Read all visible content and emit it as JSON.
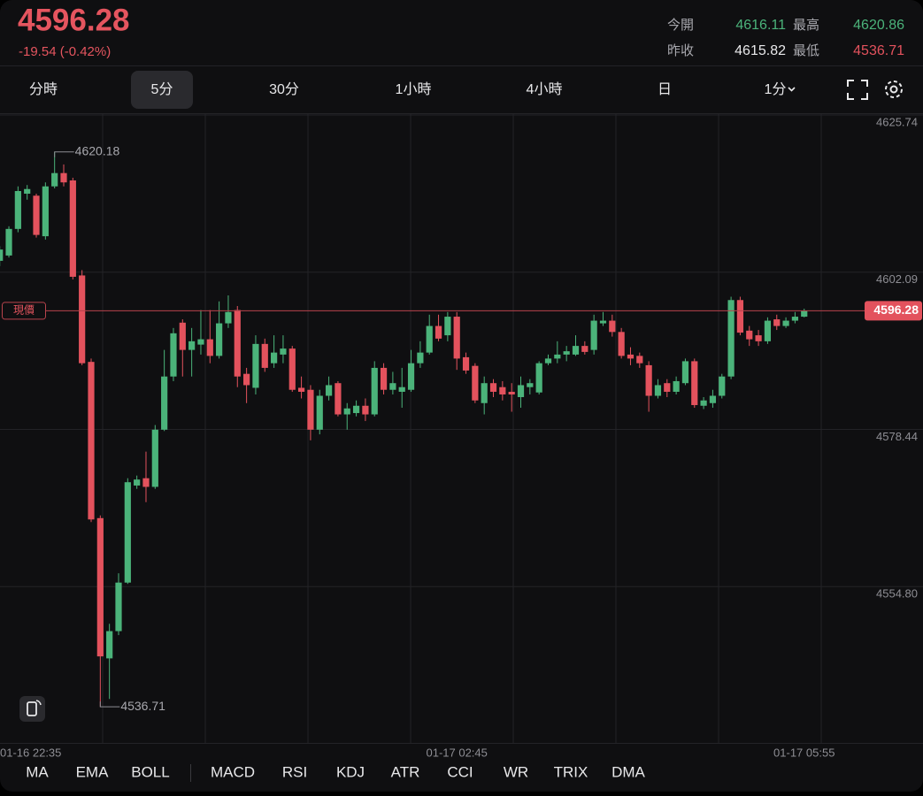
{
  "header": {
    "price": "4596.28",
    "change": "-19.54 (-0.42%)",
    "stats": [
      {
        "label": "今開",
        "value": "4616.11",
        "color": "#4bb37a"
      },
      {
        "label": "最高",
        "value": "4620.86",
        "color": "#4bb37a"
      },
      {
        "label": "昨收",
        "value": "4615.82",
        "color": "#e8e8ea"
      },
      {
        "label": "最低",
        "value": "4536.71",
        "color": "#e3525d"
      }
    ]
  },
  "tabs": {
    "items": [
      "分時",
      "5分",
      "30分",
      "1小時",
      "4小時",
      "日",
      "1分"
    ],
    "selected": 1
  },
  "indicators": [
    "MA",
    "EMA",
    "BOLL",
    "MACD",
    "RSI",
    "KDJ",
    "ATR",
    "CCI",
    "WR",
    "TRIX",
    "DMA"
  ],
  "chart_data": {
    "type": "candlestick",
    "up_color": "#4bb37a",
    "down_color": "#e3525d",
    "current_price": 4596.28,
    "current_price_label": "現價",
    "ylim": [
      4531.28,
      4625.74
    ],
    "yticks": [
      4625.74,
      4602.09,
      4578.44,
      {
        "value": 4554.8,
        "label": "4554.80"
      }
    ],
    "grid": true,
    "categories": [
      "01-16 22:35",
      null,
      null,
      null,
      null,
      null,
      null,
      null,
      null,
      null,
      null,
      null,
      null,
      null,
      null,
      null,
      null,
      null,
      null,
      null,
      null,
      null,
      null,
      null,
      null,
      null,
      null,
      null,
      null,
      null,
      null,
      null,
      null,
      null,
      null,
      null,
      null,
      null,
      null,
      null,
      null,
      null,
      null,
      null,
      null,
      null,
      null,
      null,
      null,
      null,
      "01-17 02:45",
      null,
      null,
      null,
      null,
      null,
      null,
      null,
      null,
      null,
      null,
      null,
      null,
      null,
      null,
      null,
      null,
      null,
      null,
      null,
      null,
      null,
      null,
      null,
      null,
      null,
      null,
      null,
      null,
      null,
      null,
      null,
      null,
      null,
      null,
      null,
      null,
      null,
      "01-17 05:55"
    ],
    "open": [
      4603.8,
      4604.6,
      4608.6,
      4613.9,
      4613.6,
      4607.5,
      4615.0,
      4617.0,
      4615.9,
      4601.6,
      4588.6,
      4565.1,
      4544.0,
      4548.1,
      4555.4,
      4570.0,
      4571.1,
      4569.8,
      4578.4,
      4586.4,
      4594.5,
      4590.4,
      4591.2,
      4592.0,
      4589.5,
      4594.4,
      4596.4,
      4586.8,
      4584.7,
      4591.3,
      4588.4,
      4589.7,
      4590.6,
      4584.7,
      4584.4,
      4578.4,
      4583.5,
      4585.4,
      4580.7,
      4580.9,
      4582.0,
      4580.7,
      4587.7,
      4584.4,
      4584.1,
      4584.4,
      4588.4,
      4590.0,
      4594.0,
      4592.6,
      4595.4,
      4589.3,
      4588.0,
      4582.4,
      4585.4,
      4584.8,
      4584.1,
      4583.3,
      4584.8,
      4584.0,
      4588.4,
      4589.1,
      4589.7,
      4589.7,
      4591.0,
      4590.4,
      4594.4,
      4594.8,
      4593.1,
      4589.7,
      4589.5,
      4588.1,
      4583.5,
      4585.4,
      4584.1,
      4585.4,
      4588.7,
      4582.0,
      4582.4,
      4583.5,
      4586.4,
      4597.9,
      4593.3,
      4592.6,
      4591.7,
      4595.0,
      4594.0,
      4594.8,
      4595.4
    ],
    "close": [
      4605.5,
      4608.6,
      4614.3,
      4614.6,
      4607.7,
      4615.0,
      4617.0,
      4615.6,
      4601.4,
      4588.4,
      4564.9,
      4544.3,
      4548.1,
      4555.4,
      4570.5,
      4570.9,
      4569.8,
      4578.4,
      4586.4,
      4592.9,
      4590.4,
      4591.7,
      4592.0,
      4589.5,
      4594.4,
      4596.1,
      4586.4,
      4585.1,
      4591.3,
      4587.7,
      4590.0,
      4590.6,
      4584.4,
      4584.1,
      4578.4,
      4583.5,
      4585.1,
      4580.7,
      4581.6,
      4582.0,
      4580.7,
      4587.7,
      4584.4,
      4585.4,
      4584.8,
      4588.4,
      4590.0,
      4594.0,
      4592.1,
      4595.4,
      4589.1,
      4587.3,
      4582.8,
      4585.4,
      4584.1,
      4583.7,
      4583.7,
      4585.1,
      4585.4,
      4588.4,
      4589.1,
      4589.7,
      4590.2,
      4591.0,
      4590.1,
      4594.8,
      4594.8,
      4593.1,
      4589.5,
      4589.1,
      4588.4,
      4583.5,
      4585.1,
      4584.1,
      4585.7,
      4588.7,
      4582.1,
      4582.8,
      4583.5,
      4586.4,
      4597.9,
      4593.0,
      4592.0,
      4591.7,
      4594.8,
      4594.0,
      4594.8,
      4595.4,
      4596.28
    ],
    "high": [
      4606.0,
      4609.0,
      4615.0,
      4615.2,
      4613.9,
      4615.6,
      4620.18,
      4618.3,
      4616.3,
      4602.4,
      4589.1,
      4565.5,
      4549.2,
      4556.8,
      4571.1,
      4571.5,
      4575.1,
      4579.1,
      4590.4,
      4593.7,
      4595.0,
      4593.7,
      4596.4,
      4596.4,
      4597.7,
      4598.6,
      4597.0,
      4587.7,
      4592.6,
      4592.1,
      4592.6,
      4592.6,
      4591.0,
      4586.4,
      4585.1,
      4584.4,
      4586.4,
      4585.7,
      4582.4,
      4582.8,
      4583.1,
      4588.7,
      4588.4,
      4587.1,
      4587.7,
      4590.4,
      4591.7,
      4595.7,
      4595.7,
      4596.1,
      4596.1,
      4590.0,
      4588.4,
      4586.4,
      4586.0,
      4585.7,
      4585.4,
      4586.4,
      4586.0,
      4588.7,
      4589.7,
      4591.7,
      4591.0,
      4592.6,
      4591.7,
      4595.7,
      4596.1,
      4595.7,
      4593.7,
      4590.8,
      4590.0,
      4588.7,
      4586.0,
      4586.0,
      4586.4,
      4589.1,
      4589.1,
      4583.3,
      4584.4,
      4586.8,
      4598.4,
      4598.4,
      4594.0,
      4593.4,
      4595.3,
      4595.7,
      4595.3,
      4596.1,
      4596.6
    ],
    "low": [
      4603.0,
      4604.3,
      4608.1,
      4613.0,
      4607.3,
      4607.0,
      4614.7,
      4615.0,
      4601.0,
      4588.1,
      4564.5,
      4536.71,
      4537.9,
      4547.5,
      4555.2,
      4569.5,
      4567.5,
      4569.5,
      4578.2,
      4585.7,
      4586.4,
      4586.4,
      4589.7,
      4588.4,
      4589.1,
      4593.7,
      4584.8,
      4582.4,
      4583.7,
      4587.1,
      4587.7,
      4588.4,
      4584.1,
      4583.1,
      4576.8,
      4577.7,
      4582.8,
      4580.4,
      4578.4,
      4580.4,
      4579.7,
      4580.4,
      4583.7,
      4583.7,
      4581.7,
      4584.1,
      4587.7,
      4589.7,
      4591.7,
      4591.7,
      4587.4,
      4586.8,
      4582.4,
      4580.7,
      4583.3,
      4582.8,
      4581.1,
      4581.7,
      4583.7,
      4583.7,
      4588.1,
      4588.4,
      4588.7,
      4589.5,
      4589.7,
      4589.7,
      4594.0,
      4592.4,
      4589.1,
      4588.1,
      4587.7,
      4581.1,
      4583.1,
      4583.3,
      4583.7,
      4585.1,
      4581.7,
      4581.5,
      4581.7,
      4583.1,
      4586.0,
      4592.6,
      4591.0,
      4591.0,
      4591.3,
      4593.4,
      4593.7,
      4594.4,
      4595.3
    ]
  }
}
